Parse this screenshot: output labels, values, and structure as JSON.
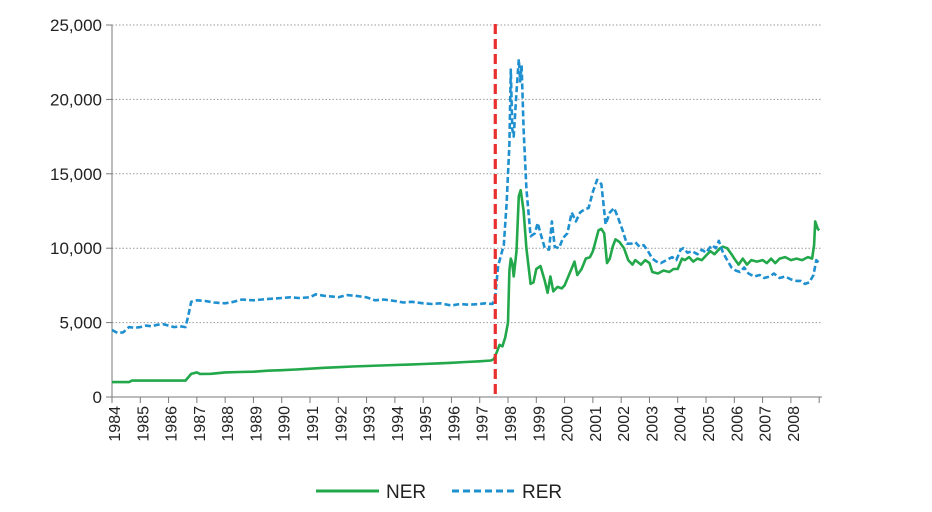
{
  "chart_data": {
    "type": "line",
    "title": "",
    "xlabel": "",
    "ylabel": "",
    "ylim": [
      0,
      25000
    ],
    "xlim": [
      1984.0,
      2009.1
    ],
    "yticks": [
      0,
      5000,
      10000,
      15000,
      20000,
      25000
    ],
    "ytick_labels": [
      "0",
      "5,000",
      "10,000",
      "15,000",
      "20,000",
      "25,000"
    ],
    "xtick_labels": [
      "1984",
      "1985",
      "1986",
      "1987",
      "1988",
      "1989",
      "1990",
      "1991",
      "1992",
      "1993",
      "1994",
      "1995",
      "1996",
      "1997",
      "1998",
      "1999",
      "2000",
      "2001",
      "2002",
      "2003",
      "2004",
      "2005",
      "2006",
      "2007",
      "2008"
    ],
    "grid": "horizontal dotted",
    "legend_position": "bottom",
    "vertical_marker": {
      "x": 1997.55,
      "style": "dashed",
      "color": "#e8312f"
    },
    "series": [
      {
        "name": "NER",
        "color": "#22a84a",
        "style": "solid",
        "points": [
          [
            1984.0,
            1000
          ],
          [
            1984.6,
            1000
          ],
          [
            1984.7,
            1100
          ],
          [
            1985.5,
            1100
          ],
          [
            1986.0,
            1100
          ],
          [
            1986.6,
            1100
          ],
          [
            1986.8,
            1550
          ],
          [
            1987.0,
            1650
          ],
          [
            1987.1,
            1550
          ],
          [
            1987.5,
            1560
          ],
          [
            1988.0,
            1650
          ],
          [
            1988.5,
            1680
          ],
          [
            1989.0,
            1700
          ],
          [
            1989.5,
            1770
          ],
          [
            1990.0,
            1800
          ],
          [
            1990.5,
            1850
          ],
          [
            1991.0,
            1900
          ],
          [
            1991.5,
            1960
          ],
          [
            1992.0,
            2000
          ],
          [
            1992.5,
            2050
          ],
          [
            1993.0,
            2080
          ],
          [
            1993.5,
            2120
          ],
          [
            1994.0,
            2150
          ],
          [
            1994.5,
            2180
          ],
          [
            1995.0,
            2220
          ],
          [
            1995.5,
            2260
          ],
          [
            1996.0,
            2300
          ],
          [
            1996.5,
            2350
          ],
          [
            1997.0,
            2400
          ],
          [
            1997.4,
            2450
          ],
          [
            1997.5,
            2550
          ],
          [
            1997.6,
            3000
          ],
          [
            1997.7,
            3500
          ],
          [
            1997.8,
            3400
          ],
          [
            1997.9,
            4000
          ],
          [
            1998.0,
            5000
          ],
          [
            1998.05,
            8500
          ],
          [
            1998.1,
            9300
          ],
          [
            1998.15,
            9000
          ],
          [
            1998.2,
            8100
          ],
          [
            1998.3,
            9800
          ],
          [
            1998.38,
            13500
          ],
          [
            1998.45,
            13900
          ],
          [
            1998.55,
            12500
          ],
          [
            1998.65,
            10000
          ],
          [
            1998.8,
            7600
          ],
          [
            1998.9,
            7700
          ],
          [
            1999.0,
            8600
          ],
          [
            1999.15,
            8800
          ],
          [
            1999.3,
            7800
          ],
          [
            1999.4,
            7000
          ],
          [
            1999.5,
            8100
          ],
          [
            1999.6,
            7100
          ],
          [
            1999.75,
            7400
          ],
          [
            1999.9,
            7300
          ],
          [
            2000.0,
            7500
          ],
          [
            2000.2,
            8400
          ],
          [
            2000.35,
            9100
          ],
          [
            2000.45,
            8200
          ],
          [
            2000.6,
            8600
          ],
          [
            2000.75,
            9300
          ],
          [
            2000.9,
            9400
          ],
          [
            2001.0,
            9800
          ],
          [
            2001.1,
            10500
          ],
          [
            2001.2,
            11200
          ],
          [
            2001.3,
            11300
          ],
          [
            2001.4,
            11000
          ],
          [
            2001.5,
            9000
          ],
          [
            2001.6,
            9300
          ],
          [
            2001.7,
            10100
          ],
          [
            2001.8,
            10600
          ],
          [
            2001.95,
            10400
          ],
          [
            2002.1,
            10000
          ],
          [
            2002.25,
            9200
          ],
          [
            2002.4,
            8900
          ],
          [
            2002.5,
            9200
          ],
          [
            2002.7,
            8900
          ],
          [
            2002.85,
            9200
          ],
          [
            2003.0,
            9000
          ],
          [
            2003.1,
            8400
          ],
          [
            2003.3,
            8300
          ],
          [
            2003.5,
            8500
          ],
          [
            2003.7,
            8400
          ],
          [
            2003.85,
            8600
          ],
          [
            2004.0,
            8600
          ],
          [
            2004.15,
            9300
          ],
          [
            2004.25,
            9200
          ],
          [
            2004.4,
            9400
          ],
          [
            2004.55,
            9100
          ],
          [
            2004.7,
            9300
          ],
          [
            2004.85,
            9200
          ],
          [
            2005.0,
            9500
          ],
          [
            2005.15,
            9800
          ],
          [
            2005.3,
            9600
          ],
          [
            2005.5,
            10000
          ],
          [
            2005.6,
            10100
          ],
          [
            2005.75,
            10000
          ],
          [
            2005.9,
            9600
          ],
          [
            2006.0,
            9300
          ],
          [
            2006.15,
            8900
          ],
          [
            2006.3,
            9300
          ],
          [
            2006.45,
            8900
          ],
          [
            2006.6,
            9200
          ],
          [
            2006.8,
            9100
          ],
          [
            2007.0,
            9200
          ],
          [
            2007.15,
            9000
          ],
          [
            2007.3,
            9300
          ],
          [
            2007.45,
            9000
          ],
          [
            2007.6,
            9300
          ],
          [
            2007.8,
            9400
          ],
          [
            2008.0,
            9200
          ],
          [
            2008.2,
            9300
          ],
          [
            2008.4,
            9200
          ],
          [
            2008.6,
            9400
          ],
          [
            2008.75,
            9300
          ],
          [
            2008.82,
            10200
          ],
          [
            2008.86,
            11800
          ],
          [
            2008.95,
            11300
          ],
          [
            2009.0,
            11200
          ]
        ]
      },
      {
        "name": "RER",
        "color": "#1f90cf",
        "style": "dashed",
        "points": [
          [
            1984.0,
            4500
          ],
          [
            1984.2,
            4300
          ],
          [
            1984.4,
            4350
          ],
          [
            1984.6,
            4700
          ],
          [
            1984.8,
            4650
          ],
          [
            1985.0,
            4700
          ],
          [
            1985.2,
            4800
          ],
          [
            1985.4,
            4750
          ],
          [
            1985.6,
            4850
          ],
          [
            1985.8,
            4900
          ],
          [
            1986.0,
            4800
          ],
          [
            1986.2,
            4700
          ],
          [
            1986.4,
            4750
          ],
          [
            1986.6,
            4700
          ],
          [
            1986.7,
            5500
          ],
          [
            1986.8,
            6400
          ],
          [
            1987.0,
            6500
          ],
          [
            1987.3,
            6450
          ],
          [
            1987.6,
            6350
          ],
          [
            1988.0,
            6300
          ],
          [
            1988.3,
            6400
          ],
          [
            1988.6,
            6550
          ],
          [
            1989.0,
            6500
          ],
          [
            1989.3,
            6550
          ],
          [
            1989.6,
            6600
          ],
          [
            1990.0,
            6650
          ],
          [
            1990.3,
            6700
          ],
          [
            1990.6,
            6650
          ],
          [
            1991.0,
            6700
          ],
          [
            1991.2,
            6900
          ],
          [
            1991.5,
            6800
          ],
          [
            1991.8,
            6750
          ],
          [
            1992.0,
            6700
          ],
          [
            1992.3,
            6850
          ],
          [
            1992.6,
            6800
          ],
          [
            1993.0,
            6700
          ],
          [
            1993.3,
            6500
          ],
          [
            1993.6,
            6550
          ],
          [
            1994.0,
            6450
          ],
          [
            1994.3,
            6350
          ],
          [
            1994.6,
            6400
          ],
          [
            1995.0,
            6300
          ],
          [
            1995.3,
            6250
          ],
          [
            1995.6,
            6300
          ],
          [
            1996.0,
            6150
          ],
          [
            1996.3,
            6250
          ],
          [
            1996.6,
            6200
          ],
          [
            1997.0,
            6250
          ],
          [
            1997.2,
            6300
          ],
          [
            1997.45,
            6250
          ],
          [
            1997.55,
            6800
          ],
          [
            1997.65,
            8800
          ],
          [
            1997.75,
            9500
          ],
          [
            1997.85,
            10200
          ],
          [
            1997.95,
            13000
          ],
          [
            1998.05,
            17000
          ],
          [
            1998.1,
            22000
          ],
          [
            1998.15,
            18000
          ],
          [
            1998.2,
            17500
          ],
          [
            1998.25,
            19000
          ],
          [
            1998.3,
            20500
          ],
          [
            1998.38,
            22700
          ],
          [
            1998.43,
            21200
          ],
          [
            1998.48,
            22300
          ],
          [
            1998.55,
            18000
          ],
          [
            1998.65,
            14000
          ],
          [
            1998.8,
            10800
          ],
          [
            1998.95,
            11000
          ],
          [
            1999.05,
            11700
          ],
          [
            1999.15,
            11000
          ],
          [
            1999.3,
            10000
          ],
          [
            1999.45,
            9900
          ],
          [
            1999.55,
            11800
          ],
          [
            1999.65,
            10100
          ],
          [
            1999.8,
            10000
          ],
          [
            1999.95,
            10700
          ],
          [
            2000.1,
            11000
          ],
          [
            2000.25,
            12400
          ],
          [
            2000.4,
            11800
          ],
          [
            2000.55,
            12400
          ],
          [
            2000.7,
            12600
          ],
          [
            2000.85,
            12700
          ],
          [
            2001.0,
            13800
          ],
          [
            2001.15,
            14600
          ],
          [
            2001.3,
            14300
          ],
          [
            2001.45,
            11600
          ],
          [
            2001.6,
            12400
          ],
          [
            2001.75,
            12700
          ],
          [
            2001.9,
            12000
          ],
          [
            2002.05,
            11200
          ],
          [
            2002.2,
            10300
          ],
          [
            2002.35,
            10300
          ],
          [
            2002.5,
            10400
          ],
          [
            2002.65,
            10100
          ],
          [
            2002.8,
            10200
          ],
          [
            2002.95,
            9800
          ],
          [
            2003.1,
            9300
          ],
          [
            2003.25,
            9100
          ],
          [
            2003.4,
            9000
          ],
          [
            2003.6,
            9200
          ],
          [
            2003.8,
            9400
          ],
          [
            2003.95,
            9200
          ],
          [
            2004.1,
            9900
          ],
          [
            2004.2,
            10000
          ],
          [
            2004.35,
            9700
          ],
          [
            2004.5,
            9800
          ],
          [
            2004.7,
            9600
          ],
          [
            2004.85,
            9900
          ],
          [
            2005.0,
            9700
          ],
          [
            2005.2,
            10200
          ],
          [
            2005.35,
            10000
          ],
          [
            2005.45,
            10500
          ],
          [
            2005.6,
            9700
          ],
          [
            2005.75,
            9200
          ],
          [
            2005.9,
            8700
          ],
          [
            2006.05,
            8500
          ],
          [
            2006.2,
            8400
          ],
          [
            2006.35,
            8700
          ],
          [
            2006.5,
            8300
          ],
          [
            2006.7,
            8100
          ],
          [
            2006.9,
            8200
          ],
          [
            2007.05,
            8000
          ],
          [
            2007.25,
            8100
          ],
          [
            2007.4,
            8300
          ],
          [
            2007.6,
            8000
          ],
          [
            2007.8,
            8100
          ],
          [
            2008.0,
            7900
          ],
          [
            2008.2,
            7800
          ],
          [
            2008.35,
            7800
          ],
          [
            2008.5,
            7600
          ],
          [
            2008.65,
            7700
          ],
          [
            2008.8,
            8200
          ],
          [
            2008.9,
            9200
          ],
          [
            2009.0,
            9000
          ]
        ]
      }
    ]
  }
}
